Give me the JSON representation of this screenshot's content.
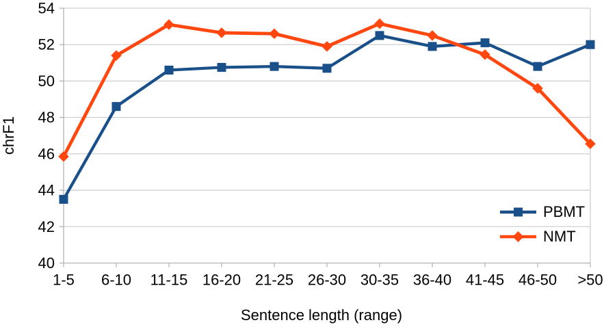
{
  "chart_data": {
    "type": "line",
    "title": "",
    "xlabel": "Sentence length (range)",
    "ylabel": "chrF1",
    "ylim": [
      40,
      54
    ],
    "ytick_step": 2,
    "grid": "horizontal",
    "legend_position": "inside-bottom-right",
    "categories": [
      "1-5",
      "6-10",
      "11-15",
      "16-20",
      "21-25",
      "26-30",
      "30-35",
      "36-40",
      "41-45",
      "46-50",
      ">50"
    ],
    "series": [
      {
        "name": "PBMT",
        "marker": "square",
        "color": "#1A5089",
        "values": [
          43.5,
          48.6,
          50.6,
          50.75,
          50.8,
          50.7,
          52.5,
          51.9,
          52.1,
          50.8,
          52.0
        ]
      },
      {
        "name": "NMT",
        "marker": "diamond",
        "color": "#FF470F",
        "values": [
          45.85,
          51.4,
          53.1,
          52.65,
          52.6,
          51.9,
          53.15,
          52.5,
          51.45,
          49.6,
          46.55
        ]
      }
    ],
    "colors": {
      "grid": "#cfcfcf",
      "axis": "#b3b3b3",
      "text": "#000000",
      "background": "#ffffff"
    }
  }
}
